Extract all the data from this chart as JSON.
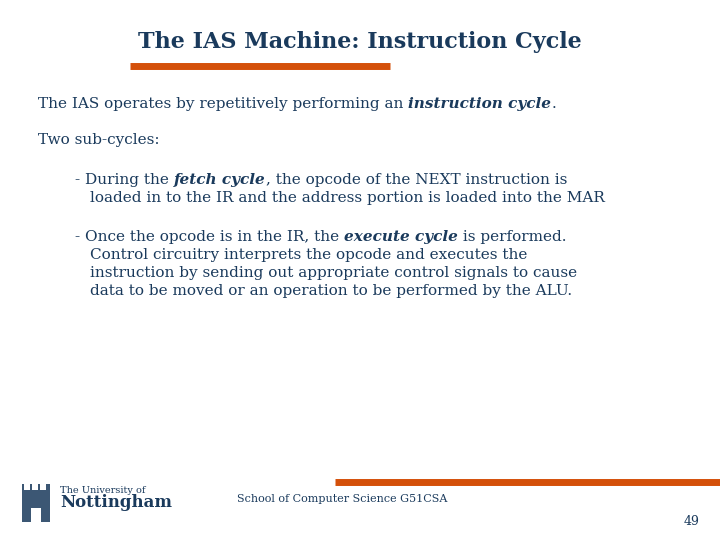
{
  "title": "The IAS Machine: Instruction Cycle",
  "title_color": "#1a3a5c",
  "background_color": "#ffffff",
  "orange_color": "#d4500a",
  "text_color": "#1a3a5c",
  "footer_text": "School of Computer Science G51CSA",
  "page_number": "49",
  "line1_plain": "The IAS operates by repetitively performing an ",
  "line1_bi": "instruction cycle",
  "line1_end": ".",
  "line2": "Two sub-cycles:",
  "b1_plain1": "- During the ",
  "b1_bi": "fetch cycle",
  "b1_plain2": ", the opcode of the NEXT instruction is",
  "b1_line2": "  loaded in to the IR and the address portion is loaded into the MAR",
  "b2_plain1": "- Once the opcode is in the IR, the ",
  "b2_bi": "execute cycle",
  "b2_plain2": " is performed.",
  "b2_line2": "  Control circuitry interprets the opcode and executes the",
  "b2_line3": "  instruction by sending out appropriate control signals to cause",
  "b2_line4": "  data to be moved or an operation to be performed by the ALU.",
  "uni_line1": "The University of",
  "uni_line2": "Nottingham",
  "title_fontsize": 16,
  "body_fontsize": 11,
  "footer_fontsize": 8
}
